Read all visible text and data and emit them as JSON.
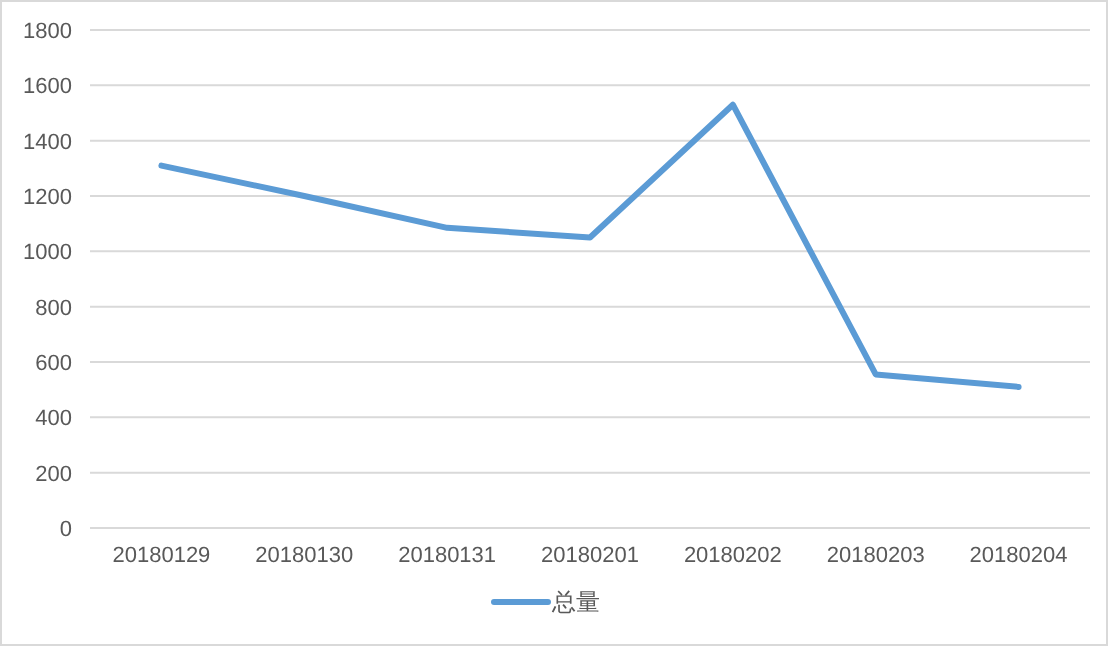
{
  "chart_data": {
    "type": "line",
    "categories": [
      "20180129",
      "20180130",
      "20180131",
      "20180201",
      "20180202",
      "20180203",
      "20180204"
    ],
    "series": [
      {
        "name": "总量",
        "color": "#5b9bd5",
        "values": [
          1310,
          1200,
          1085,
          1050,
          1530,
          555,
          510
        ]
      }
    ],
    "ylim": [
      0,
      1800
    ],
    "yticks": [
      0,
      200,
      400,
      600,
      800,
      1000,
      1200,
      1400,
      1600,
      1800
    ],
    "grid": "y",
    "legend": "bottom",
    "marker": "none",
    "line_style": "solid"
  }
}
